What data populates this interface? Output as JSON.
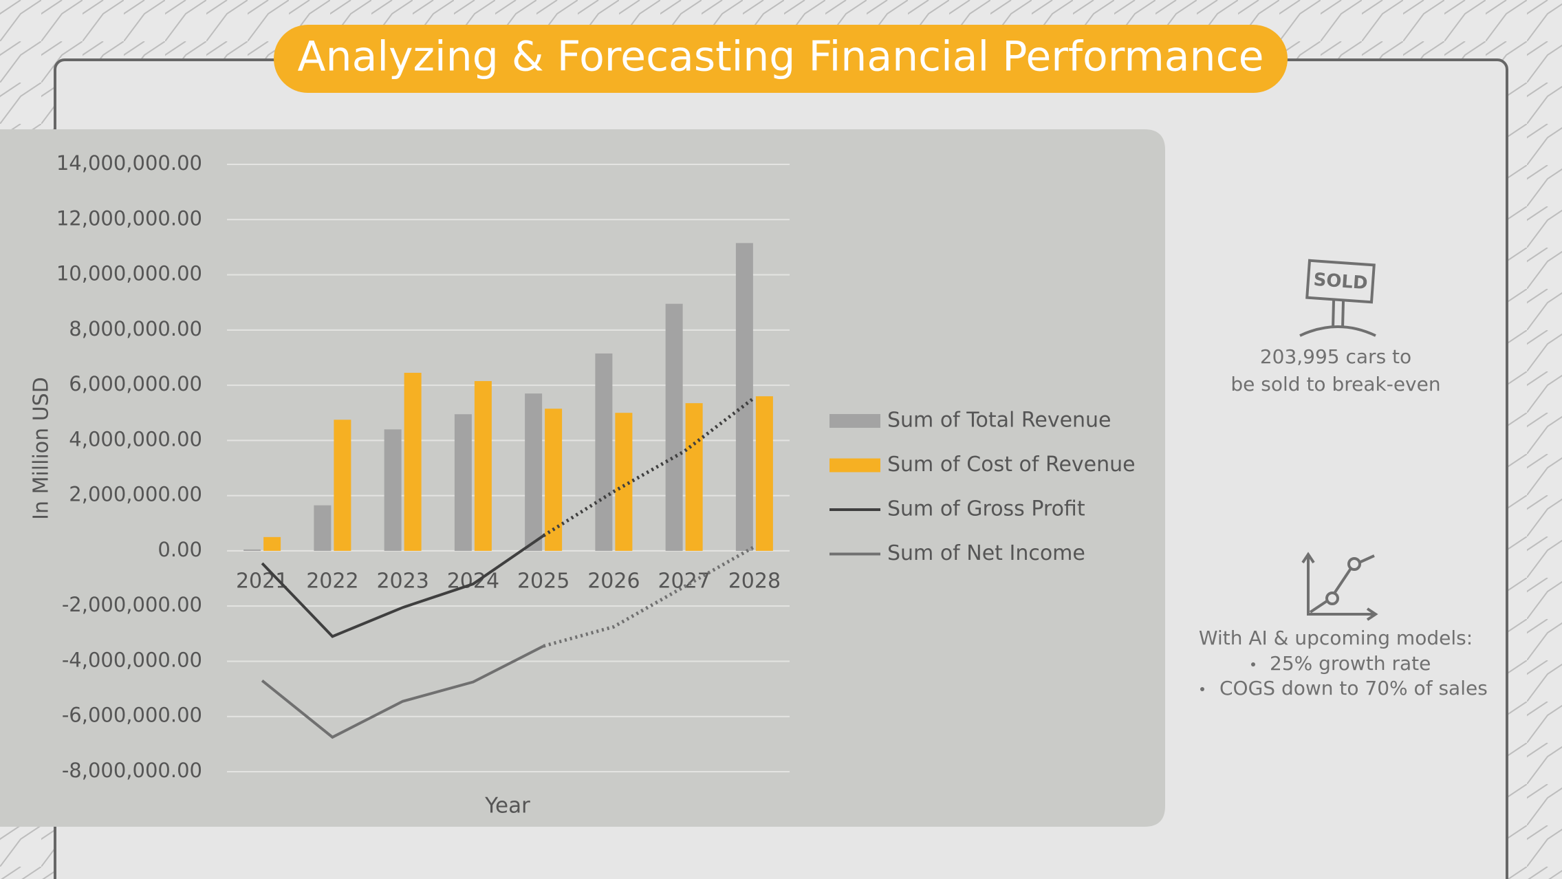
{
  "header": {
    "title": "Analyzing & Forecasting Financial Performance"
  },
  "chart_data": {
    "type": "combo",
    "y_axis_title": "In Million USD",
    "x_axis_title": "Year",
    "categories": [
      "2021",
      "2022",
      "2023",
      "2024",
      "2025",
      "2026",
      "2027",
      "2028"
    ],
    "series": [
      {
        "name": "Sum of Total Revenue",
        "kind": "bar",
        "color": "#a3a3a3",
        "values": [
          50000,
          1650000,
          4400000,
          4950000,
          5700000,
          7150000,
          8950000,
          11150000
        ]
      },
      {
        "name": "Sum of Cost of Revenue",
        "kind": "bar",
        "color": "#f6b023",
        "values": [
          500000,
          4750000,
          6450000,
          6150000,
          5150000,
          5000000,
          5350000,
          5600000
        ]
      },
      {
        "name": "Sum of Gross Profit",
        "kind": "line",
        "color": "#3f3f3f",
        "values": [
          -450000,
          -3100000,
          -2050000,
          -1200000,
          550000,
          2150000,
          3600000,
          5550000
        ]
      },
      {
        "name": "Sum of Net Income",
        "kind": "line",
        "color": "#707070",
        "values": [
          -4700000,
          -6750000,
          -5450000,
          -4750000,
          -3450000,
          -2750000,
          -1300000,
          150000
        ]
      }
    ],
    "dotted_from": "2025",
    "ylim": [
      -8000000,
      14000000
    ],
    "yticks": [
      {
        "value": -8000000,
        "label": "-8,000,000.00"
      },
      {
        "value": -6000000,
        "label": "-6,000,000.00"
      },
      {
        "value": -4000000,
        "label": "-4,000,000.00"
      },
      {
        "value": -2000000,
        "label": "-2,000,000.00"
      },
      {
        "value": 0,
        "label": "0.00"
      },
      {
        "value": 2000000,
        "label": "2,000,000.00"
      },
      {
        "value": 4000000,
        "label": "4,000,000.00"
      },
      {
        "value": 6000000,
        "label": "6,000,000.00"
      },
      {
        "value": 8000000,
        "label": "8,000,000.00"
      },
      {
        "value": 10000000,
        "label": "10,000,000.00"
      },
      {
        "value": 12000000,
        "label": "12,000,000.00"
      },
      {
        "value": 14000000,
        "label": "14,000,000.00"
      }
    ],
    "grid": true,
    "legend": "right"
  },
  "side": {
    "sign_text": "SOLD",
    "break_even": [
      "203,995 cars to",
      "be sold to break-even"
    ],
    "ai_note": {
      "heading": "With AI & upcoming models:",
      "bullets": [
        "25% growth rate",
        "COGS down to 70% of sales"
      ]
    }
  }
}
